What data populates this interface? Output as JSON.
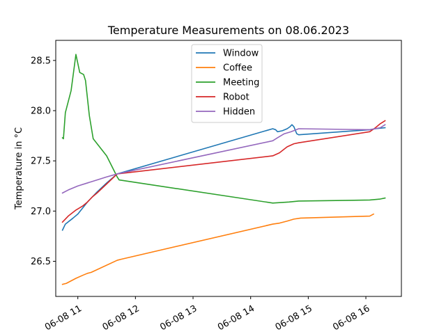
{
  "chart_data": {
    "type": "line",
    "title": "Temperature Measurements on 08.06.2023",
    "xlabel": "",
    "ylabel": "Temperature in °C",
    "xlim": [
      "2023-06-08 10:37",
      "2023-06-08 16:37"
    ],
    "ylim": [
      26.15,
      28.7
    ],
    "x_ticks": [
      "06-08 11",
      "06-08 12",
      "06-08 13",
      "06-08 14",
      "06-08 15",
      "06-08 16"
    ],
    "y_ticks": [
      "26.5",
      "27.0",
      "27.5",
      "28.0",
      "28.5"
    ],
    "grid": false,
    "legend_position": "top-center",
    "series": [
      {
        "name": "Window",
        "color": "#1f77b4",
        "points": [
          [
            "2023-06-08 10:44",
            26.81
          ],
          [
            "2023-06-08 10:45",
            26.83
          ],
          [
            "2023-06-08 10:47",
            26.87
          ],
          [
            "2023-06-08 10:55",
            26.93
          ],
          [
            "2023-06-08 11:00",
            26.97
          ],
          [
            "2023-06-08 11:05",
            27.03
          ],
          [
            "2023-06-08 11:10",
            27.09
          ],
          [
            "2023-06-08 11:15",
            27.14
          ],
          [
            "2023-06-08 11:20",
            27.19
          ],
          [
            "2023-06-08 11:30",
            27.28
          ],
          [
            "2023-06-08 11:41",
            27.37
          ],
          [
            "2023-06-08 14:23",
            27.82
          ],
          [
            "2023-06-08 14:26",
            27.81
          ],
          [
            "2023-06-08 14:28",
            27.79
          ],
          [
            "2023-06-08 14:33",
            27.8
          ],
          [
            "2023-06-08 14:38",
            27.82
          ],
          [
            "2023-06-08 14:41",
            27.84
          ],
          [
            "2023-06-08 14:43",
            27.86
          ],
          [
            "2023-06-08 14:45",
            27.84
          ],
          [
            "2023-06-08 14:48",
            27.77
          ],
          [
            "2023-06-08 14:50",
            27.76
          ],
          [
            "2023-06-08 16:04",
            27.81
          ],
          [
            "2023-06-08 16:10",
            27.82
          ],
          [
            "2023-06-08 16:20",
            27.83
          ]
        ]
      },
      {
        "name": "Coffee",
        "color": "#ff7f0e",
        "points": [
          [
            "2023-06-08 10:44",
            26.27
          ],
          [
            "2023-06-08 10:48",
            26.28
          ],
          [
            "2023-06-08 10:58",
            26.33
          ],
          [
            "2023-06-08 11:05",
            26.36
          ],
          [
            "2023-06-08 11:10",
            26.38
          ],
          [
            "2023-06-08 11:14",
            26.39
          ],
          [
            "2023-06-08 11:41",
            26.51
          ],
          [
            "2023-06-08 11:45",
            26.52
          ],
          [
            "2023-06-08 14:23",
            26.87
          ],
          [
            "2023-06-08 14:30",
            26.88
          ],
          [
            "2023-06-08 14:38",
            26.9
          ],
          [
            "2023-06-08 14:45",
            26.92
          ],
          [
            "2023-06-08 14:52",
            26.93
          ],
          [
            "2023-06-08 16:04",
            26.95
          ],
          [
            "2023-06-08 16:08",
            26.97
          ]
        ]
      },
      {
        "name": "Meeting",
        "color": "#2ca02c",
        "points": [
          [
            "2023-06-08 10:44",
            27.73
          ],
          [
            "2023-06-08 10:45",
            27.72
          ],
          [
            "2023-06-08 10:47",
            27.98
          ],
          [
            "2023-06-08 10:53",
            28.2
          ],
          [
            "2023-06-08 10:58",
            28.56
          ],
          [
            "2023-06-08 11:02",
            28.38
          ],
          [
            "2023-06-08 11:06",
            28.36
          ],
          [
            "2023-06-08 11:08",
            28.3
          ],
          [
            "2023-06-08 11:12",
            27.95
          ],
          [
            "2023-06-08 11:16",
            27.72
          ],
          [
            "2023-06-08 11:30",
            27.55
          ],
          [
            "2023-06-08 11:41",
            27.34
          ],
          [
            "2023-06-08 11:43",
            27.31
          ],
          [
            "2023-06-08 14:23",
            27.08
          ],
          [
            "2023-06-08 14:40",
            27.09
          ],
          [
            "2023-06-08 14:50",
            27.1
          ],
          [
            "2023-06-08 16:04",
            27.11
          ],
          [
            "2023-06-08 16:15",
            27.12
          ],
          [
            "2023-06-08 16:20",
            27.13
          ]
        ]
      },
      {
        "name": "Robot",
        "color": "#d62728",
        "points": [
          [
            "2023-06-08 10:44",
            26.89
          ],
          [
            "2023-06-08 10:50",
            26.95
          ],
          [
            "2023-06-08 10:58",
            27.01
          ],
          [
            "2023-06-08 11:05",
            27.05
          ],
          [
            "2023-06-08 11:10",
            27.09
          ],
          [
            "2023-06-08 11:15",
            27.14
          ],
          [
            "2023-06-08 11:20",
            27.18
          ],
          [
            "2023-06-08 11:30",
            27.27
          ],
          [
            "2023-06-08 11:41",
            27.37
          ],
          [
            "2023-06-08 14:23",
            27.55
          ],
          [
            "2023-06-08 14:30",
            27.58
          ],
          [
            "2023-06-08 14:38",
            27.64
          ],
          [
            "2023-06-08 14:45",
            27.67
          ],
          [
            "2023-06-08 14:50",
            27.68
          ],
          [
            "2023-06-08 16:04",
            27.79
          ],
          [
            "2023-06-08 16:10",
            27.83
          ],
          [
            "2023-06-08 16:15",
            27.87
          ],
          [
            "2023-06-08 16:20",
            27.9
          ]
        ]
      },
      {
        "name": "Hidden",
        "color": "#9467bd",
        "points": [
          [
            "2023-06-08 10:44",
            27.18
          ],
          [
            "2023-06-08 10:50",
            27.21
          ],
          [
            "2023-06-08 11:00",
            27.25
          ],
          [
            "2023-06-08 11:10",
            27.28
          ],
          [
            "2023-06-08 11:20",
            27.31
          ],
          [
            "2023-06-08 11:30",
            27.34
          ],
          [
            "2023-06-08 11:41",
            27.37
          ],
          [
            "2023-06-08 14:23",
            27.7
          ],
          [
            "2023-06-08 14:28",
            27.73
          ],
          [
            "2023-06-08 14:35",
            27.77
          ],
          [
            "2023-06-08 14:42",
            27.79
          ],
          [
            "2023-06-08 14:50",
            27.82
          ],
          [
            "2023-06-08 16:04",
            27.81
          ],
          [
            "2023-06-08 16:15",
            27.83
          ],
          [
            "2023-06-08 16:20",
            27.86
          ]
        ]
      }
    ]
  }
}
